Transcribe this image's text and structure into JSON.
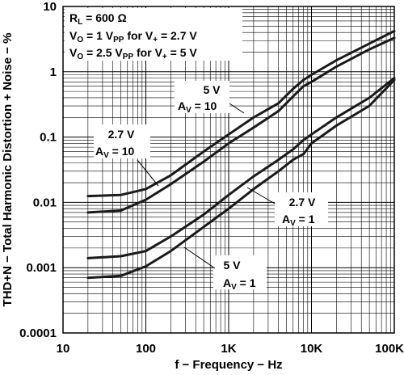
{
  "chart_data": {
    "type": "line",
    "xlabel": "f − Frequency − Hz",
    "ylabel": "THD+N − Total Harmonic Distortion + Noise − %",
    "x_scale": "log",
    "y_scale": "log",
    "xlim": [
      10,
      100000
    ],
    "ylim": [
      0.0001,
      10
    ],
    "grid": true,
    "x_ticks": [
      "10",
      "100",
      "1K",
      "10K",
      "100K"
    ],
    "y_ticks": [
      "0.0001",
      "0.001",
      "0.01",
      "0.1",
      "1",
      "10"
    ],
    "conditions": {
      "rl_prefix": "R",
      "rl_sub": "L",
      "rl_value": " = 600 Ω",
      "vo1_prefix": "V",
      "vo1_sub": "O",
      "vo1_mid": " = 1 V",
      "vo1_sub2": "PP",
      "vo1_tail": " for V",
      "vo1_sub3": "+",
      "vo1_end": " = 2.7 V",
      "vo2_prefix": "V",
      "vo2_sub": "O",
      "vo2_mid": " = 2.5 V",
      "vo2_sub2": "PP",
      "vo2_tail": " for V",
      "vo2_sub3": "+",
      "vo2_end": " = 5 V"
    },
    "series": [
      {
        "supply": "2.7 V",
        "gain": "10",
        "x": [
          20,
          50,
          100,
          200,
          500,
          1000,
          2000,
          4000,
          6000,
          8000,
          10000,
          20000,
          50000,
          100000
        ],
        "y": [
          0.0125,
          0.013,
          0.016,
          0.026,
          0.06,
          0.11,
          0.2,
          0.33,
          0.55,
          0.75,
          0.9,
          1.5,
          2.7,
          4.2
        ]
      },
      {
        "supply": "5 V",
        "gain": "10",
        "x": [
          20,
          50,
          100,
          200,
          500,
          1000,
          2000,
          4000,
          6000,
          8000,
          10000,
          20000,
          50000,
          100000
        ],
        "y": [
          0.007,
          0.0075,
          0.011,
          0.019,
          0.042,
          0.08,
          0.14,
          0.25,
          0.42,
          0.6,
          0.7,
          1.2,
          2.2,
          3.3
        ]
      },
      {
        "supply": "2.7 V",
        "gain": "1",
        "x": [
          20,
          50,
          100,
          200,
          500,
          1000,
          2000,
          4000,
          6000,
          8000,
          10000,
          20000,
          50000,
          100000
        ],
        "y": [
          0.0014,
          0.0015,
          0.0018,
          0.003,
          0.0065,
          0.013,
          0.025,
          0.045,
          0.065,
          0.09,
          0.11,
          0.2,
          0.4,
          0.8
        ]
      },
      {
        "supply": "5 V",
        "gain": "1",
        "x": [
          20,
          50,
          100,
          200,
          500,
          1000,
          2000,
          4000,
          6000,
          8000,
          10000,
          20000,
          50000,
          100000
        ],
        "y": [
          0.0007,
          0.00075,
          0.00105,
          0.0018,
          0.0042,
          0.008,
          0.016,
          0.03,
          0.045,
          0.055,
          0.08,
          0.15,
          0.3,
          0.75
        ]
      }
    ],
    "annotations": [
      {
        "line1": "5 V",
        "av_prefix": "A",
        "av_sub": "V",
        "av_value": " = 10"
      },
      {
        "line1": "2.7 V",
        "av_prefix": "A",
        "av_sub": "V",
        "av_value": " = 10"
      },
      {
        "line1": "2.7 V",
        "av_prefix": "A",
        "av_sub": "V",
        "av_value": " = 1"
      },
      {
        "line1": "5 V",
        "av_prefix": "A",
        "av_sub": "V",
        "av_value": " = 1"
      }
    ]
  }
}
